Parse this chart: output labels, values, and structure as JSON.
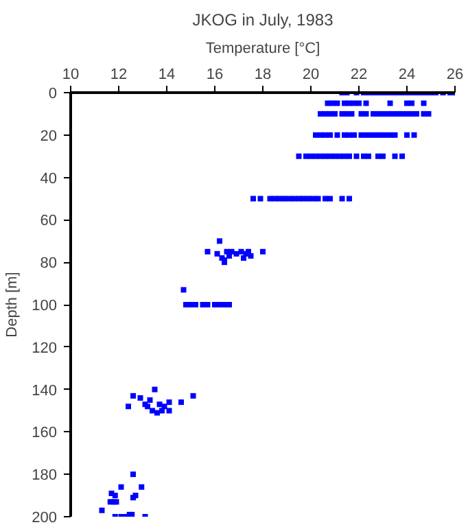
{
  "chart_data": {
    "type": "scatter",
    "title": "JKOG in July, 1983",
    "xlabel": "Temperature [°C]",
    "ylabel": "Depth [m]",
    "xlim": [
      10,
      26
    ],
    "ylim": [
      200,
      0
    ],
    "xticks": [
      10,
      12,
      14,
      16,
      18,
      20,
      22,
      24,
      26
    ],
    "yticks": [
      0,
      20,
      40,
      60,
      80,
      100,
      120,
      140,
      160,
      180,
      200
    ],
    "grid": false,
    "marker": "square",
    "series": [
      {
        "color": "#0000ff",
        "x": [
          21.3,
          21.5,
          21.9,
          22.2,
          22.4,
          22.6,
          22.8,
          23.0,
          23.2,
          23.4,
          23.6,
          23.8,
          24.0,
          24.2,
          24.4,
          24.6,
          24.8,
          25.0,
          25.2,
          25.5,
          25.8,
          25.9,
          20.7,
          20.9,
          21.1,
          21.4,
          21.6,
          21.8,
          22.0,
          22.3,
          23.3,
          24.0,
          24.2,
          24.7,
          20.4,
          20.6,
          20.8,
          21.0,
          21.3,
          21.5,
          21.7,
          22.1,
          22.3,
          22.6,
          22.8,
          23.0,
          23.2,
          23.4,
          23.6,
          23.8,
          24.0,
          24.2,
          24.4,
          24.7,
          24.9,
          20.2,
          20.4,
          20.6,
          20.8,
          21.1,
          21.4,
          21.6,
          21.8,
          22.1,
          22.3,
          22.5,
          22.7,
          22.9,
          23.1,
          23.3,
          23.5,
          24.0,
          24.3,
          19.5,
          19.8,
          20.0,
          20.2,
          20.4,
          20.6,
          20.8,
          21.0,
          21.2,
          21.4,
          21.6,
          21.9,
          22.2,
          22.4,
          22.8,
          23.0,
          23.5,
          23.8,
          17.6,
          17.9,
          18.3,
          18.5,
          18.7,
          18.9,
          19.1,
          19.3,
          19.5,
          19.7,
          19.9,
          20.1,
          20.3,
          20.6,
          20.8,
          21.3,
          21.6,
          16.2,
          15.7,
          16.1,
          16.3,
          16.5,
          16.7,
          16.9,
          17.1,
          17.3,
          17.5,
          17.4,
          16.6,
          16.4,
          18.0,
          16.4,
          17.2,
          14.7,
          14.8,
          15.0,
          15.2,
          15.5,
          15.7,
          16.0,
          16.2,
          16.4,
          16.6,
          12.4,
          12.6,
          12.9,
          13.3,
          13.5,
          13.2,
          13.4,
          13.6,
          13.8,
          13.9,
          14.1,
          14.1,
          14.6,
          15.1,
          13.1,
          13.7,
          12.6,
          12.1,
          12.95,
          11.7,
          11.85,
          12.6,
          12.7,
          11.3,
          11.65,
          11.8,
          11.9,
          11.85,
          12.1,
          12.3,
          12.45,
          12.55,
          13.1
        ],
        "values": [
          0,
          0,
          0,
          0,
          0,
          0,
          0,
          0,
          0,
          0,
          0,
          0,
          0,
          0,
          0,
          0,
          0,
          0,
          0,
          0,
          0,
          0,
          5,
          5,
          5,
          5,
          5,
          5,
          5,
          5,
          5,
          5,
          5,
          5,
          10,
          10,
          10,
          10,
          10,
          10,
          10,
          10,
          10,
          10,
          10,
          10,
          10,
          10,
          10,
          10,
          10,
          10,
          10,
          10,
          10,
          20,
          20,
          20,
          20,
          20,
          20,
          20,
          20,
          20,
          20,
          20,
          20,
          20,
          20,
          20,
          20,
          20,
          20,
          30,
          30,
          30,
          30,
          30,
          30,
          30,
          30,
          30,
          30,
          30,
          30,
          30,
          30,
          30,
          30,
          30,
          30,
          50,
          50,
          50,
          50,
          50,
          50,
          50,
          50,
          50,
          50,
          50,
          50,
          50,
          50,
          50,
          50,
          50,
          70,
          75,
          76,
          78,
          75,
          75,
          76,
          75,
          76,
          77,
          75,
          77,
          79,
          75,
          80,
          78,
          93,
          100,
          100,
          100,
          100,
          100,
          100,
          100,
          100,
          100,
          148,
          143,
          144,
          145,
          140,
          148,
          150,
          151,
          150,
          148,
          146,
          150,
          146,
          143,
          147,
          147,
          180,
          186,
          186,
          189,
          190,
          191,
          190,
          197,
          193,
          193,
          193,
          200,
          200,
          200,
          199,
          199,
          200
        ]
      }
    ]
  }
}
